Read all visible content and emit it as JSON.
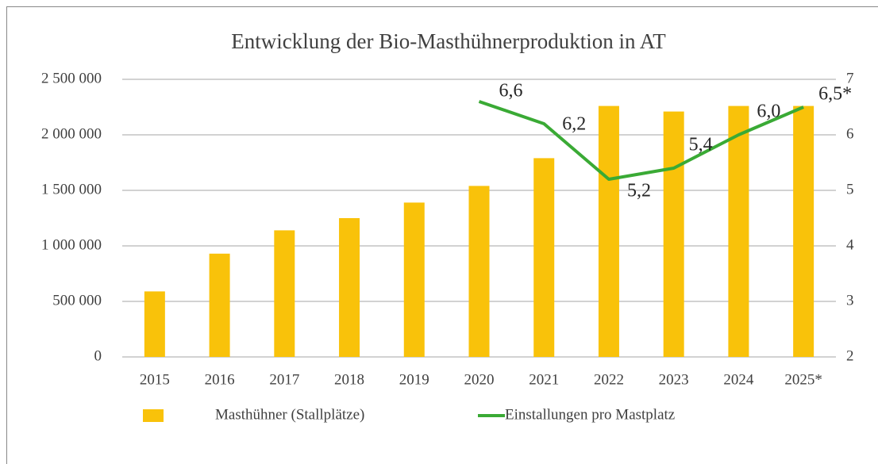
{
  "chart_data": {
    "type": "bar_line",
    "title": "Entwicklung der Bio-Masthühnerproduktion in AT",
    "categories": [
      "2015",
      "2016",
      "2017",
      "2018",
      "2019",
      "2020",
      "2021",
      "2022",
      "2023",
      "2024",
      "2025*"
    ],
    "series": [
      {
        "name": "Masthühner (Stallplätze)",
        "type": "bar",
        "color": "#f9c20a",
        "values": [
          590000,
          930000,
          1140000,
          1250000,
          1390000,
          1540000,
          1790000,
          2260000,
          2210000,
          2260000,
          2260000
        ]
      },
      {
        "name": "Einstallungen pro Mastplatz",
        "type": "line",
        "color": "#3aaa35",
        "axis": "y2",
        "values": [
          null,
          null,
          null,
          null,
          null,
          6.6,
          6.2,
          5.2,
          5.4,
          6.0,
          6.5
        ],
        "value_labels": [
          null,
          null,
          null,
          null,
          null,
          "6,6",
          "6,2",
          "5,2",
          "5,4",
          "6,0",
          "6,5*"
        ]
      }
    ],
    "ylim": [
      0,
      2500000
    ],
    "yticks": [
      0,
      {
        "value": 500000,
        "label": "500 000"
      },
      {
        "value": 1000000,
        "label": "1 000 000"
      },
      {
        "value": 1500000,
        "label": "1 500 000"
      },
      {
        "value": 2000000,
        "label": "2 000 000"
      },
      {
        "value": 2500000,
        "label": "2 500 000"
      }
    ],
    "y2lim": [
      2,
      7
    ],
    "y2ticks": [
      2,
      3,
      4,
      5,
      6,
      7
    ],
    "grid": true,
    "legend": "bottom"
  }
}
